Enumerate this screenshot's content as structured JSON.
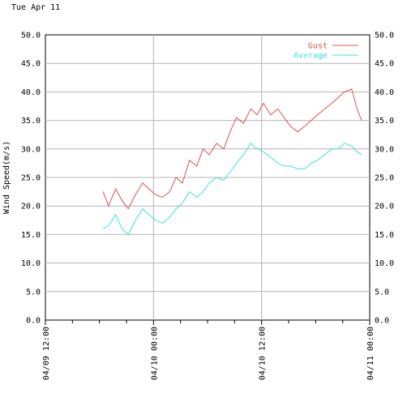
{
  "chart_data": {
    "type": "line",
    "date_label": "Tue Apr 11",
    "ylabel": "Wind Speed(m/s)",
    "ylim": [
      0,
      50
    ],
    "y_ticks": [
      "0.0",
      "5.0",
      "10.0",
      "15.0",
      "20.0",
      "25.0",
      "30.0",
      "35.0",
      "40.0",
      "45.0",
      "50.0"
    ],
    "xlim_hours": [
      0,
      36
    ],
    "x_ticks": [
      {
        "hour": 0,
        "label": "04/09 12:00"
      },
      {
        "hour": 12,
        "label": "04/10 00:00"
      },
      {
        "hour": 24,
        "label": "04/10 12:00"
      },
      {
        "hour": 36,
        "label": "04/11 00:00"
      }
    ],
    "grid": true,
    "legend_position": "top-right",
    "series": [
      {
        "name": "Gust",
        "color": "#e05050",
        "x": [
          6.4,
          7,
          7.8,
          8.5,
          9.2,
          10,
          10.8,
          11.5,
          12.2,
          13,
          13.8,
          14.5,
          15.2,
          16,
          16.8,
          17.5,
          18.2,
          19,
          19.8,
          20.5,
          21.2,
          22,
          22.8,
          23.5,
          24.2,
          25,
          25.8,
          26.5,
          27.2,
          28,
          28.8,
          29.5,
          30.2,
          31,
          31.8,
          32.5,
          33.2,
          34,
          34.6,
          35.1
        ],
        "y": [
          22.5,
          20,
          23,
          21,
          19.5,
          22,
          24,
          23,
          22,
          21.5,
          22.5,
          25,
          24,
          28,
          27,
          30,
          29,
          31,
          30,
          33,
          35.5,
          34.5,
          37,
          36,
          38,
          36,
          37,
          35.5,
          34,
          33,
          34,
          35,
          36,
          37,
          38,
          39,
          40,
          40.5,
          37,
          35
        ]
      },
      {
        "name": "Average",
        "color": "#40e0e0",
        "x": [
          6.4,
          7,
          7.8,
          8.5,
          9.2,
          10,
          10.8,
          11.5,
          12.2,
          13,
          13.8,
          14.5,
          15.2,
          16,
          16.8,
          17.5,
          18.2,
          19,
          19.8,
          20.5,
          21.2,
          22,
          22.8,
          23.5,
          24.2,
          25,
          25.8,
          26.5,
          27.2,
          28,
          28.8,
          29.5,
          30.2,
          31,
          31.8,
          32.5,
          33.2,
          34,
          34.6,
          35.1
        ],
        "y": [
          16,
          16.5,
          18.5,
          16,
          15,
          17.5,
          19.5,
          18.5,
          17.5,
          17,
          18,
          19.5,
          20.5,
          22.5,
          21.5,
          22.5,
          24,
          25,
          24.5,
          26,
          27.5,
          29,
          31,
          30,
          29.5,
          28.5,
          27.5,
          27,
          27,
          26.5,
          26.5,
          27.5,
          28,
          29,
          30,
          30,
          31,
          30.5,
          29.5,
          29
        ]
      }
    ]
  }
}
